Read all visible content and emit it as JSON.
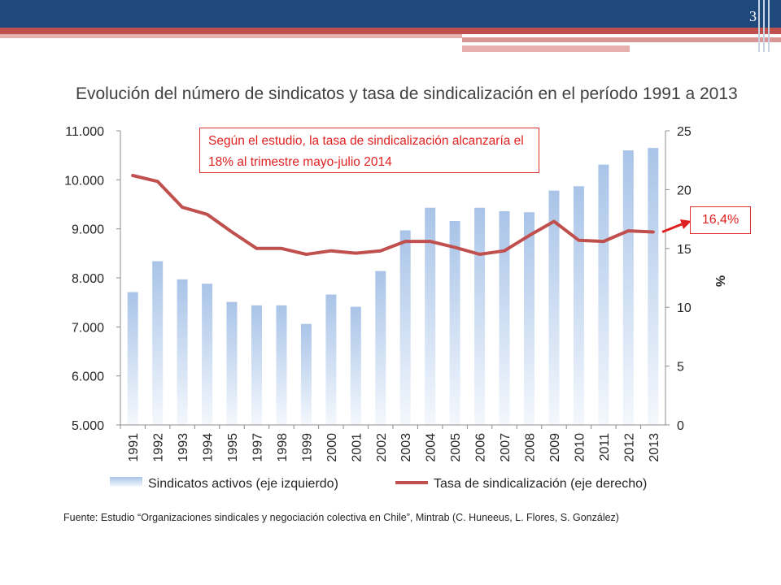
{
  "slide": {
    "page_number": "3",
    "accent_colors": {
      "header_blue": "#1f497d",
      "stripe_red": "#c0504d",
      "annotation_red": "#e02020",
      "bar_blue": "#a9c4e8",
      "line_red": "#c0504d"
    }
  },
  "callouts": {
    "study_note": "Según el estudio, la tasa de sindicalización alcanzaría el 18% al trimestre mayo-julio 2014",
    "last_value_label": "16,4%"
  },
  "source": "Fuente: Estudio “Organizaciones sindicales y negociación colectiva en Chile”, Mintrab (C. Huneeus, L. Flores, S. González)",
  "chart_data": {
    "type": "bar",
    "title": "Evolución del número de sindicatos y tasa de sindicalización en el período 1991 a 2013",
    "categories": [
      "1991",
      "1992",
      "1993",
      "1994",
      "1995",
      "1997",
      "1998",
      "1999",
      "2000",
      "2001",
      "2002",
      "2003",
      "2004",
      "2005",
      "2006",
      "2007",
      "2008",
      "2009",
      "2010",
      "2011",
      "2012",
      "2013"
    ],
    "series": [
      {
        "name": "Sindicatos activos (eje izquierdo)",
        "type": "bar",
        "axis": "left",
        "values": [
          7710,
          8340,
          7970,
          7880,
          7510,
          7440,
          7440,
          7060,
          7660,
          7410,
          8140,
          8970,
          9430,
          9160,
          9430,
          9360,
          9340,
          9780,
          9870,
          10310,
          10600,
          10650
        ]
      },
      {
        "name": "Tasa de sindicalización (eje derecho)",
        "type": "line",
        "axis": "right",
        "values": [
          21.2,
          20.7,
          18.5,
          17.9,
          16.4,
          15.0,
          15.0,
          14.5,
          14.8,
          14.6,
          14.8,
          15.6,
          15.6,
          15.1,
          14.5,
          14.8,
          16.1,
          17.3,
          15.7,
          15.6,
          16.5,
          16.4
        ]
      }
    ],
    "y_left": {
      "ylim": [
        5000,
        11000
      ],
      "ticks": [
        5000,
        6000,
        7000,
        8000,
        9000,
        10000,
        11000
      ],
      "tick_labels": [
        "5.000",
        "6.000",
        "7.000",
        "8.000",
        "9.000",
        "10.000",
        "11.000"
      ]
    },
    "y_right": {
      "label": "%",
      "ylim": [
        0,
        25
      ],
      "ticks": [
        0,
        5,
        10,
        15,
        20,
        25
      ],
      "tick_labels": [
        "0",
        "5",
        "10",
        "15",
        "20",
        "25"
      ]
    },
    "legend": {
      "position": "bottom",
      "entries": [
        "Sindicatos activos (eje izquierdo)",
        "Tasa de sindicalización (eje derecho)"
      ]
    },
    "grid": false
  }
}
